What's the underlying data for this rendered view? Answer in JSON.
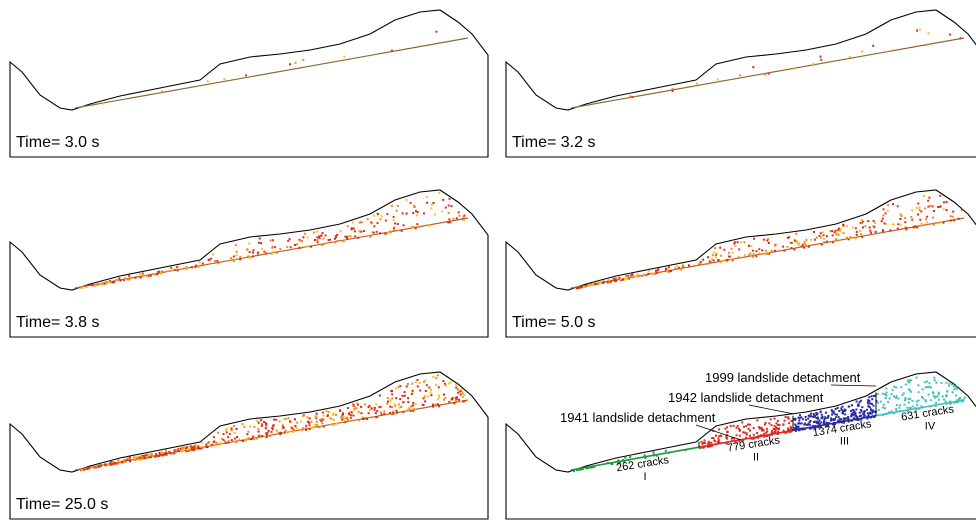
{
  "panels": [
    {
      "time_label": "Time= 3.0 s"
    },
    {
      "time_label": "Time= 3.2 s"
    },
    {
      "time_label": "Time= 3.8 s"
    },
    {
      "time_label": "Time= 5.0 s"
    },
    {
      "time_label": "Time= 25.0 s"
    }
  ],
  "summary": {
    "detachments": [
      "1999 landslide detachment",
      "1942 landslide detachment",
      "1941 landslide detachment"
    ],
    "zones": [
      {
        "count": "262 cracks",
        "label": "I"
      },
      {
        "count": "779 cracks",
        "label": "II"
      },
      {
        "count": "1374 cracks",
        "label": "III"
      },
      {
        "count": "631 cracks",
        "label": "IV"
      }
    ]
  }
}
